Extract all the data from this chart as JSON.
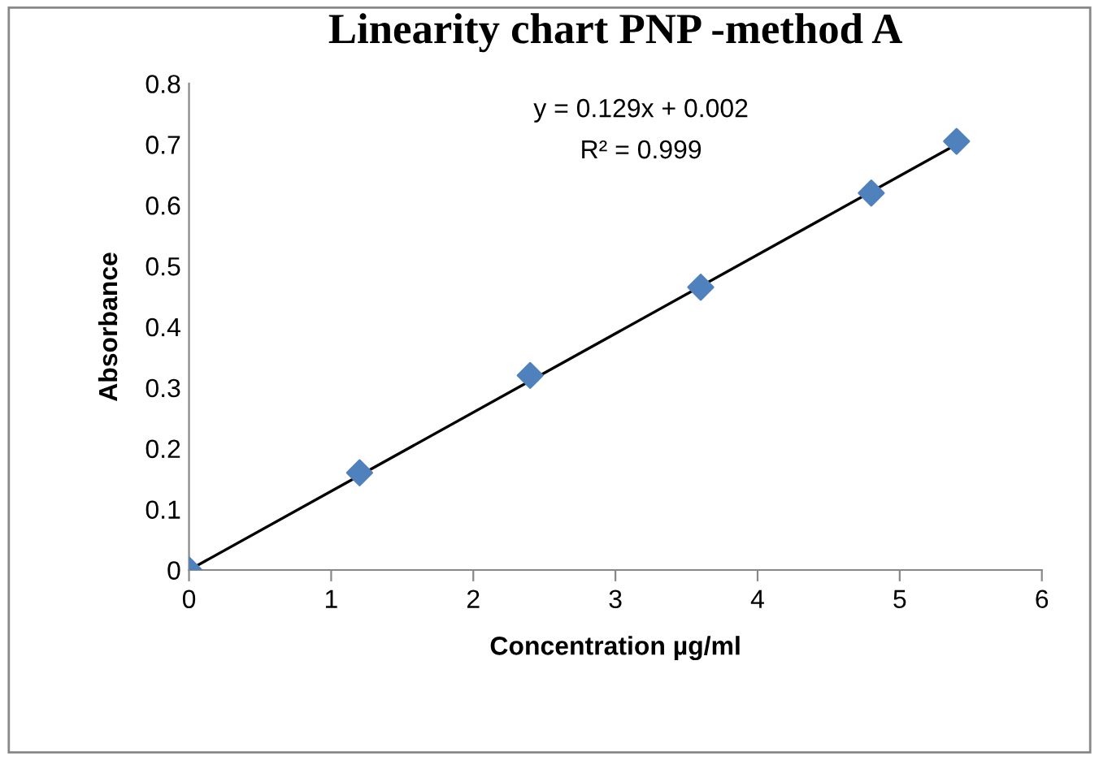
{
  "chart_data": {
    "type": "scatter",
    "title": "Linearity chart PNP -method A",
    "xlabel": "Concentration µg/ml",
    "ylabel": "Absorbance",
    "x": [
      0,
      1.2,
      2.4,
      3.6,
      4.8,
      5.4
    ],
    "series": [
      {
        "color": "#4f81bd",
        "values": [
          0,
          0.16,
          0.32,
          0.465,
          0.62,
          0.705
        ],
        "marker": "diamond"
      },
      {
        "type": "line",
        "color": "#000000",
        "x": [
          0,
          5.4
        ],
        "values": [
          0,
          0.7
        ],
        "marker": "none",
        "line_style": "solid"
      }
    ],
    "annotations": [
      "y = 0.129x + 0.002",
      "R² = 0.999"
    ],
    "xlim": [
      0,
      6
    ],
    "xticks": [
      0,
      1,
      2,
      3,
      4,
      5,
      6
    ],
    "ylim": [
      0,
      0.8
    ],
    "yticks": [
      0,
      0.1,
      0.2,
      0.3,
      0.4,
      0.5,
      0.6,
      0.7,
      0.8
    ],
    "grid": false,
    "legend": false
  }
}
